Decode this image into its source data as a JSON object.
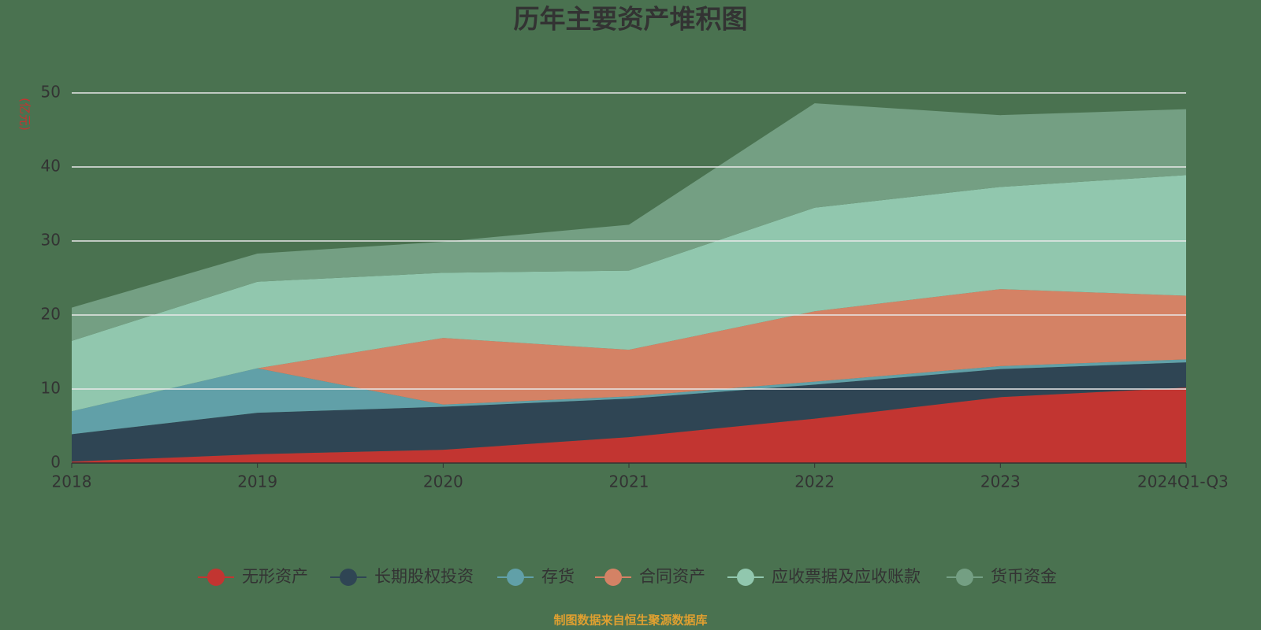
{
  "chart_data": {
    "type": "stacked-area",
    "title": "历年主要资产堆积图",
    "y_label": "(亿元)",
    "source": "制图数据来自恒生聚源数据库",
    "categories": [
      "2018",
      "2019",
      "2020",
      "2021",
      "2022",
      "2023",
      "2024Q1-Q3"
    ],
    "series": [
      {
        "name": "无形资产",
        "color": "#c23531",
        "values": [
          0.2,
          1.2,
          1.8,
          3.5,
          6.0,
          8.9,
          10.2
        ]
      },
      {
        "name": "长期股权投资",
        "color": "#2f4554",
        "values": [
          3.7,
          5.6,
          5.8,
          5.2,
          4.6,
          3.8,
          3.4
        ]
      },
      {
        "name": "存货",
        "color": "#61a0a8",
        "values": [
          3.1,
          6.0,
          0.3,
          0.3,
          0.4,
          0.4,
          0.4
        ]
      },
      {
        "name": "合同资产",
        "color": "#d48265",
        "values": [
          0,
          0,
          9.0,
          6.3,
          9.5,
          10.4,
          8.6
        ]
      },
      {
        "name": "应收票据及应收账款",
        "color": "#91c7ae",
        "values": [
          9.5,
          11.7,
          8.8,
          10.7,
          14.0,
          13.8,
          16.3
        ]
      },
      {
        "name": "货币资金",
        "color": "#749f83",
        "values": [
          4.5,
          3.8,
          4.2,
          6.2,
          14.1,
          9.7,
          8.9
        ]
      }
    ],
    "ylim": [
      0,
      50
    ],
    "yticks": [
      0,
      10,
      20,
      30,
      40,
      50
    ],
    "grid": true
  }
}
